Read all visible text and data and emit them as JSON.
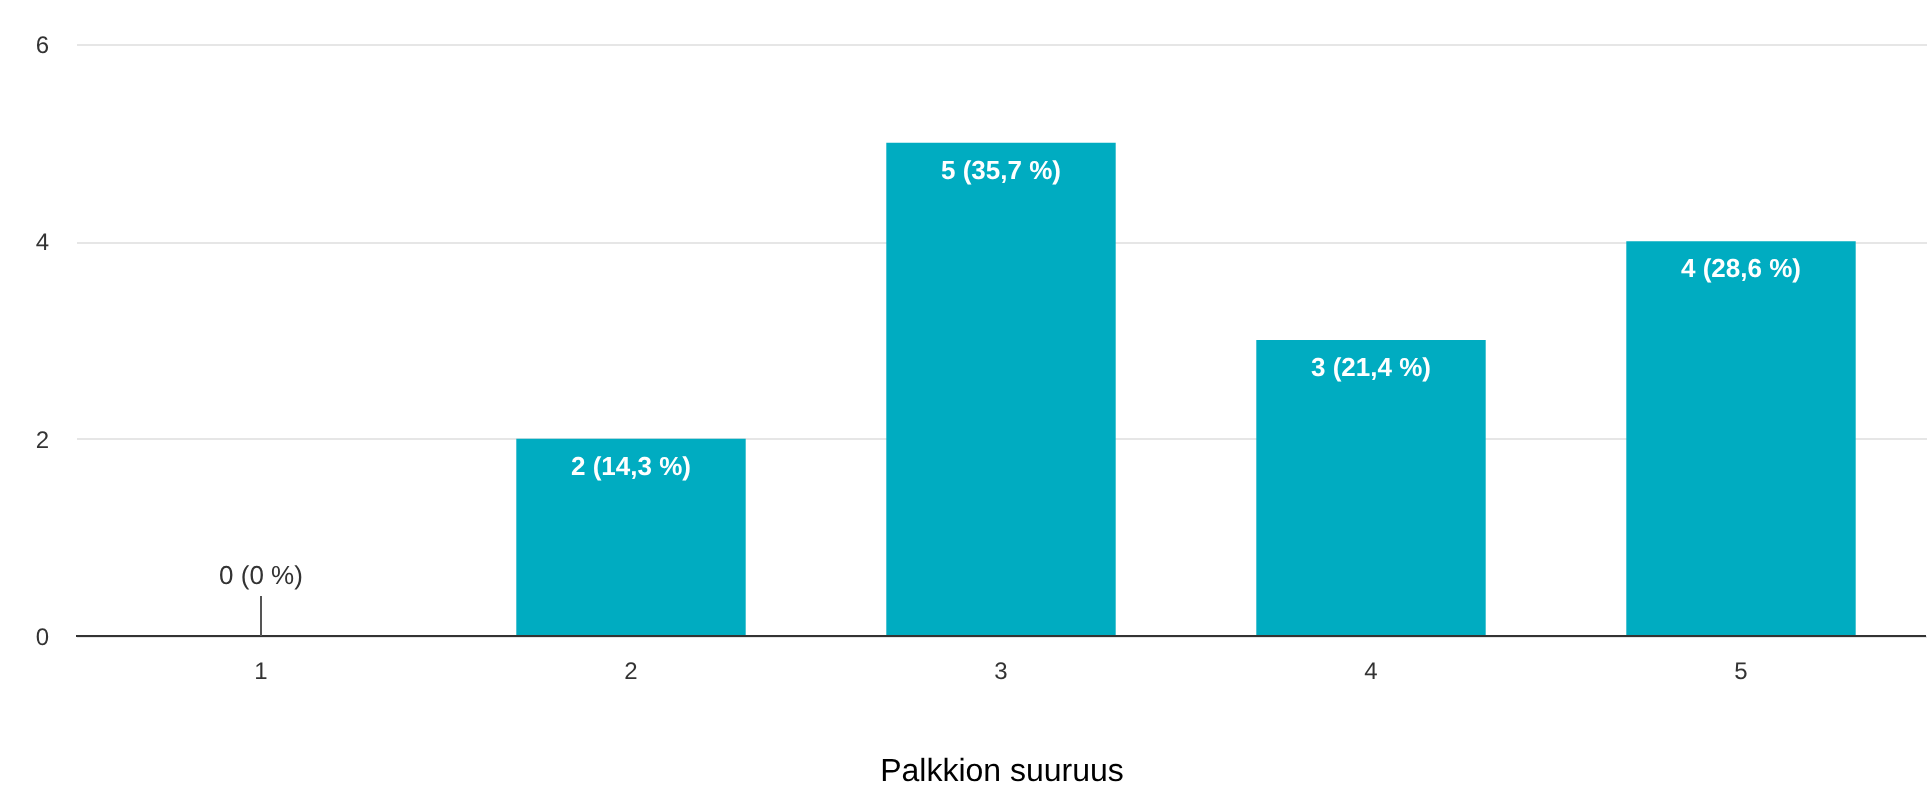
{
  "chart_data": {
    "type": "bar",
    "xlabel": "Palkkion suuruus",
    "categories": [
      "1",
      "2",
      "3",
      "4",
      "5"
    ],
    "values": [
      0,
      2,
      5,
      3,
      4
    ],
    "value_labels": [
      "0 (0 %)",
      "2 (14,3 %)",
      "5 (35,7 %)",
      "3 (21,4 %)",
      "4 (28,6 %)"
    ],
    "color": "#00acc1",
    "ylim": [
      0,
      6
    ],
    "yticks": [
      0,
      2,
      4,
      6
    ],
    "grid": "y"
  }
}
